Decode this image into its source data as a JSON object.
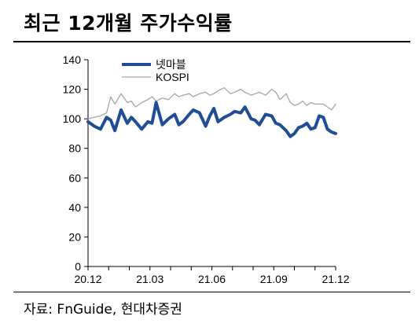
{
  "header": {
    "title": "최근 12개월 주가수익률"
  },
  "footer": {
    "source": "자료: FnGuide, 현대차증권"
  },
  "chart_data": {
    "type": "line",
    "title": "최근 12개월 주가수익률",
    "xlabel": "",
    "ylabel": "",
    "ylim": [
      0,
      140
    ],
    "yticks": [
      0,
      20,
      40,
      60,
      80,
      100,
      120,
      140
    ],
    "xlim": [
      0,
      12
    ],
    "x_ticks": [
      {
        "label": "20.12",
        "x": 0
      },
      {
        "label": "21.03",
        "x": 3
      },
      {
        "label": "21.06",
        "x": 6
      },
      {
        "label": "21.09",
        "x": 9
      },
      {
        "label": "21.12",
        "x": 12
      }
    ],
    "grid": false,
    "legend": "top-left",
    "series": [
      {
        "name": "넷마블",
        "color": "#1f4e96",
        "style": "thick",
        "x": [
          0,
          0.3,
          0.6,
          0.9,
          1.1,
          1.3,
          1.6,
          1.9,
          2.1,
          2.3,
          2.6,
          2.9,
          3.1,
          3.3,
          3.6,
          3.9,
          4.2,
          4.4,
          4.6,
          4.9,
          5.1,
          5.4,
          5.7,
          5.9,
          6.1,
          6.3,
          6.6,
          6.9,
          7.1,
          7.4,
          7.6,
          7.9,
          8.1,
          8.3,
          8.6,
          8.9,
          9.1,
          9.3,
          9.6,
          9.8,
          10.0,
          10.2,
          10.4,
          10.6,
          10.8,
          11.0,
          11.2,
          11.4,
          11.6,
          11.8,
          12.0
        ],
        "y": [
          98,
          95,
          93,
          101,
          99,
          92,
          106,
          97,
          101,
          98,
          93,
          98,
          97,
          111,
          96,
          100,
          103,
          96,
          98,
          103,
          106,
          104,
          95,
          102,
          107,
          98,
          101,
          103,
          105,
          104,
          108,
          100,
          99,
          96,
          103,
          102,
          97,
          96,
          92,
          88,
          90,
          94,
          95,
          97,
          93,
          94,
          102,
          101,
          93,
          91,
          90
        ]
      },
      {
        "name": "KOSPI",
        "color": "#a6a6a6",
        "style": "thin",
        "x": [
          0,
          0.3,
          0.6,
          0.9,
          1.1,
          1.3,
          1.6,
          1.9,
          2.1,
          2.3,
          2.6,
          2.9,
          3.1,
          3.3,
          3.6,
          3.9,
          4.2,
          4.4,
          4.6,
          4.9,
          5.1,
          5.4,
          5.7,
          5.9,
          6.1,
          6.3,
          6.6,
          6.9,
          7.1,
          7.4,
          7.6,
          7.9,
          8.1,
          8.3,
          8.6,
          8.9,
          9.1,
          9.3,
          9.6,
          9.8,
          10.0,
          10.2,
          10.4,
          10.6,
          10.8,
          11.0,
          11.2,
          11.4,
          11.6,
          11.8,
          12.0
        ],
        "y": [
          100,
          101,
          102,
          104,
          115,
          110,
          117,
          111,
          112,
          108,
          111,
          113,
          115,
          112,
          114,
          113,
          117,
          115,
          116,
          117,
          115,
          117,
          118,
          116,
          117,
          119,
          121,
          117,
          118,
          120,
          118,
          116,
          117,
          118,
          116,
          120,
          118,
          113,
          117,
          111,
          109,
          110,
          112,
          109,
          111,
          110,
          110,
          110,
          108,
          106,
          110
        ]
      }
    ]
  }
}
